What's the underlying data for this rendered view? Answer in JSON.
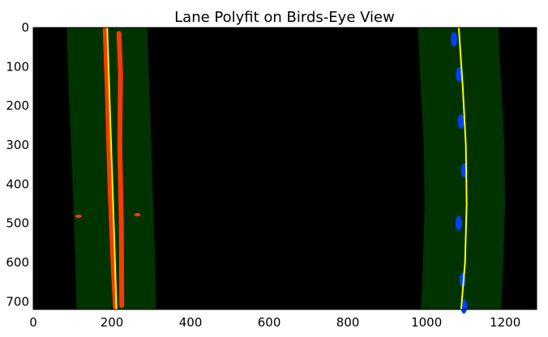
{
  "chart_data": {
    "type": "image_with_line_fit",
    "title": "Lane Polyfit on Birds-Eye View",
    "xlabel": "",
    "ylabel": "",
    "xlim": [
      0,
      1280
    ],
    "ylim": [
      720,
      0
    ],
    "x_ticks": [
      0,
      200,
      400,
      600,
      800,
      1000,
      1200
    ],
    "y_ticks": [
      0,
      100,
      200,
      300,
      400,
      500,
      600,
      700
    ],
    "background_color": "#000000",
    "search_window_color": "#003300",
    "fit_line_color": "#ffff00",
    "series": [
      {
        "side": "left",
        "pixel_color": "#ff3a00",
        "fit_x": [
          188,
          193,
          198,
          203,
          208,
          211
        ],
        "fit_y": [
          0,
          150,
          300,
          450,
          600,
          720
        ],
        "window_left_x": [
          85,
          90,
          96,
          102,
          107,
          110
        ],
        "window_right_x": [
          290,
          295,
          300,
          305,
          310,
          312
        ],
        "window_y": [
          0,
          150,
          300,
          450,
          600,
          720
        ],
        "pixel_segments": [
          {
            "x": [
              183,
              188,
              195,
              203,
              209
            ],
            "y": [
              5,
              150,
              400,
              600,
              715
            ]
          },
          {
            "x": [
              218,
              222,
              220,
              224,
              225
            ],
            "y": [
              15,
              120,
              300,
              500,
              710
            ]
          }
        ],
        "pixel_blobs": [
          {
            "x": 115,
            "y": 482
          },
          {
            "x": 265,
            "y": 478
          }
        ]
      },
      {
        "side": "right",
        "pixel_color": "#0040ff",
        "fit_x": [
          1082,
          1092,
          1100,
          1102,
          1098,
          1088
        ],
        "fit_y": [
          0,
          150,
          300,
          450,
          600,
          720
        ],
        "window_left_x": [
          978,
          985,
          993,
          995,
          991,
          986
        ],
        "window_right_x": [
          1182,
          1190,
          1198,
          1200,
          1195,
          1190
        ],
        "window_y": [
          0,
          150,
          300,
          450,
          600,
          720
        ],
        "pixel_blobs": [
          {
            "x": 1070,
            "y": 30
          },
          {
            "x": 1083,
            "y": 120
          },
          {
            "x": 1088,
            "y": 240
          },
          {
            "x": 1096,
            "y": 365
          },
          {
            "x": 1082,
            "y": 500
          },
          {
            "x": 1092,
            "y": 645
          },
          {
            "x": 1095,
            "y": 712
          }
        ]
      }
    ]
  }
}
